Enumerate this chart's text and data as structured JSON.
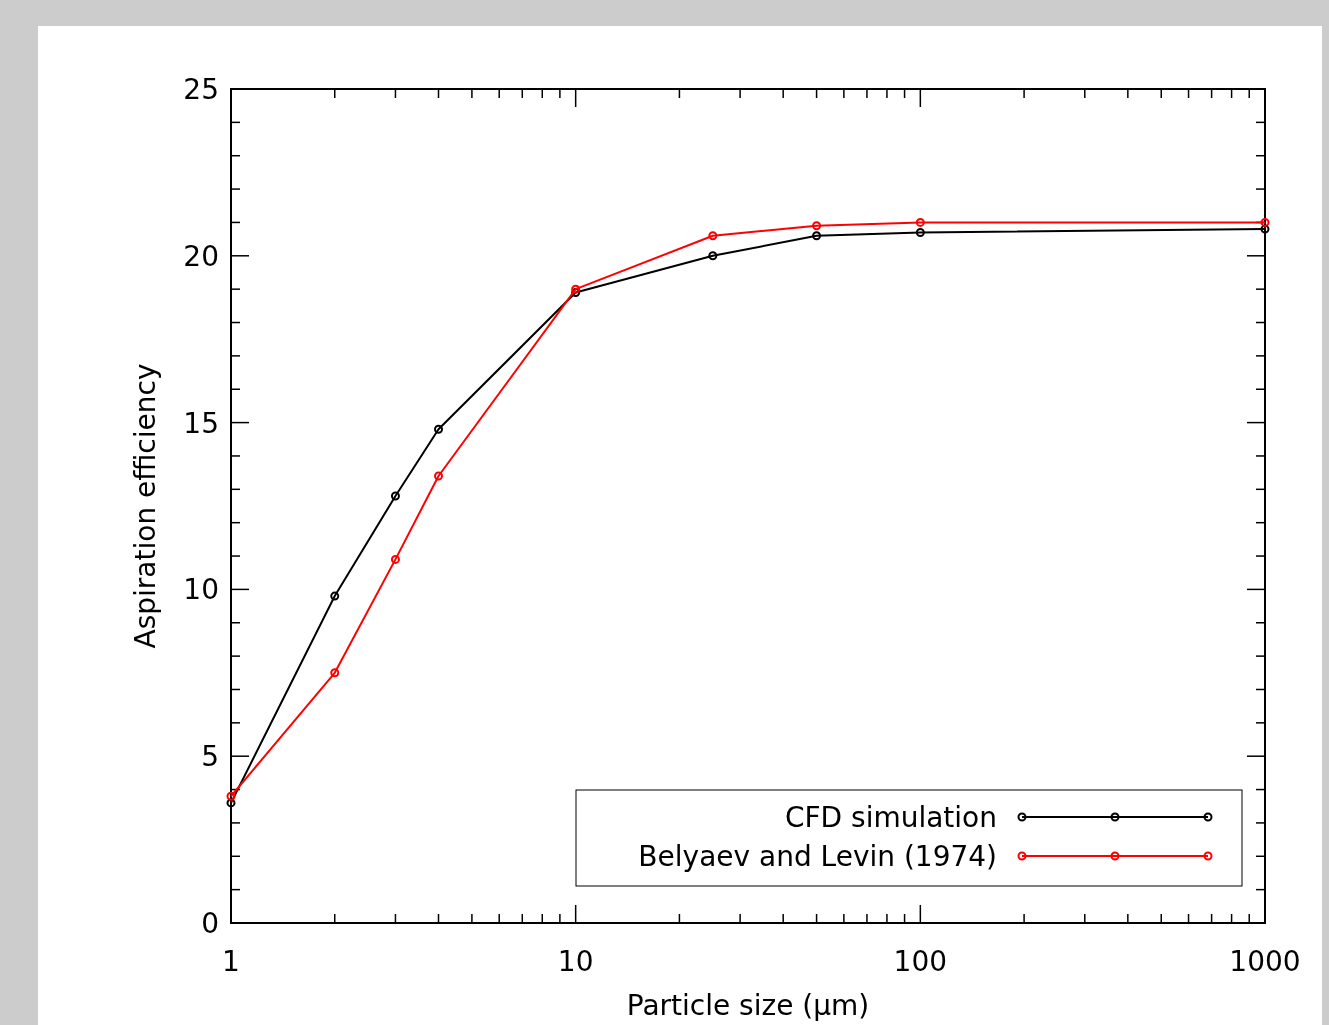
{
  "chart_data": {
    "type": "line",
    "xlabel": "Particle size (μm)",
    "ylabel": "Aspiration efficiency",
    "log": "x",
    "xlim": [
      1,
      1000
    ],
    "ylim": [
      0,
      25
    ],
    "xticks": [
      1,
      {
        "value": 2,
        "label": null
      },
      {
        "value": 3,
        "label": null
      },
      {
        "value": 4,
        "label": null
      },
      {
        "value": 5,
        "label": null
      },
      {
        "value": 6,
        "label": null
      },
      {
        "value": 7,
        "label": null
      },
      {
        "value": 8,
        "label": null
      },
      {
        "value": 9,
        "label": null
      },
      10,
      {
        "value": 20,
        "label": null
      },
      {
        "value": 30,
        "label": null
      },
      {
        "value": 40,
        "label": null
      },
      {
        "value": 50,
        "label": null
      },
      {
        "value": 60,
        "label": null
      },
      {
        "value": 70,
        "label": null
      },
      {
        "value": 80,
        "label": null
      },
      {
        "value": 90,
        "label": null
      },
      100,
      {
        "value": 200,
        "label": null
      },
      {
        "value": 300,
        "label": null
      },
      {
        "value": 400,
        "label": null
      },
      {
        "value": 500,
        "label": null
      },
      {
        "value": 600,
        "label": null
      },
      {
        "value": 700,
        "label": null
      },
      {
        "value": 800,
        "label": null
      },
      {
        "value": 900,
        "label": null
      },
      1000
    ],
    "yticks": [
      0,
      {
        "value": 1,
        "label": null
      },
      {
        "value": 2,
        "label": null
      },
      {
        "value": 3,
        "label": null
      },
      {
        "value": 4,
        "label": null
      },
      5,
      {
        "value": 6,
        "label": null
      },
      {
        "value": 7,
        "label": null
      },
      {
        "value": 8,
        "label": null
      },
      {
        "value": 9,
        "label": null
      },
      10,
      {
        "value": 11,
        "label": null
      },
      {
        "value": 12,
        "label": null
      },
      {
        "value": 13,
        "label": null
      },
      {
        "value": 14,
        "label": null
      },
      15,
      {
        "value": 16,
        "label": null
      },
      {
        "value": 17,
        "label": null
      },
      {
        "value": 18,
        "label": null
      },
      {
        "value": 19,
        "label": null
      },
      20,
      {
        "value": 21,
        "label": null
      },
      {
        "value": 22,
        "label": null
      },
      {
        "value": 23,
        "label": null
      },
      {
        "value": 24,
        "label": null
      },
      25
    ],
    "x": [
      1,
      2,
      3,
      4,
      10,
      25,
      50,
      100,
      1000
    ],
    "series": [
      {
        "name": "CFD simulation",
        "color": "#000000",
        "values": [
          3.6,
          9.8,
          12.8,
          14.8,
          18.9,
          20.0,
          20.6,
          20.7,
          20.8
        ]
      },
      {
        "name": "Belyaev and Levin (1974)",
        "color": "#ff0000",
        "values": [
          3.8,
          7.5,
          10.9,
          13.4,
          19.0,
          20.6,
          20.9,
          21.0,
          21.0
        ]
      }
    ],
    "marker": "circle",
    "line_style": "solid",
    "grid": false,
    "legend": "bottom right"
  }
}
